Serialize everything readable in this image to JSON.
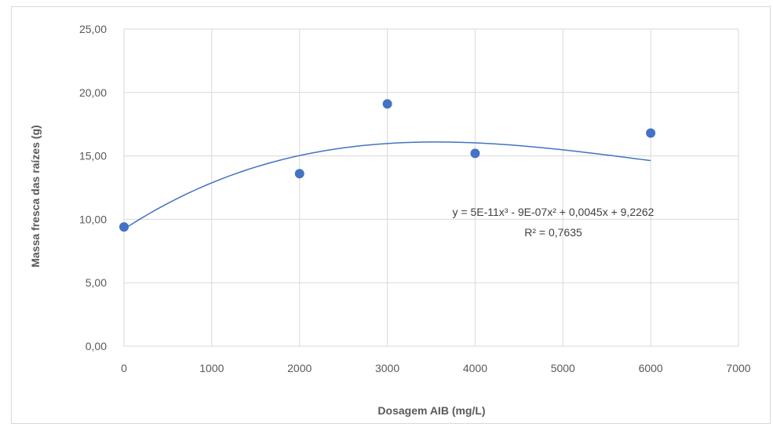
{
  "chart_data": {
    "type": "scatter",
    "xlabel": "Dosagem AIB (mg/L)",
    "ylabel": "Massa fresca das raízes (g)",
    "xlim": [
      0,
      7000
    ],
    "ylim": [
      0,
      25
    ],
    "x_ticks": [
      0,
      1000,
      2000,
      3000,
      4000,
      5000,
      6000,
      7000
    ],
    "y_ticks": [
      "0,00",
      "5,00",
      "10,00",
      "15,00",
      "20,00",
      "25,00"
    ],
    "y_tick_values": [
      0,
      5,
      10,
      15,
      20,
      25
    ],
    "grid": true,
    "series": [
      {
        "points": [
          {
            "x": 0,
            "y": 9.4
          },
          {
            "x": 2000,
            "y": 13.6
          },
          {
            "x": 3000,
            "y": 19.1
          },
          {
            "x": 4000,
            "y": 15.2
          },
          {
            "x": 6000,
            "y": 16.8
          }
        ]
      }
    ],
    "trendline": {
      "type": "polynomial",
      "order": 3,
      "coefficients": [
        9.2262,
        0.0045,
        -9e-07,
        5e-11
      ],
      "equation": "y = 5E-11x³ - 9E-07x² + 0,0045x + 9,2262",
      "r_squared": "R² = 0,7635"
    },
    "colors": {
      "marker": "#4472c4",
      "trendline": "#4472c4",
      "grid": "#d9d9d9",
      "axis_text": "#595959"
    }
  }
}
